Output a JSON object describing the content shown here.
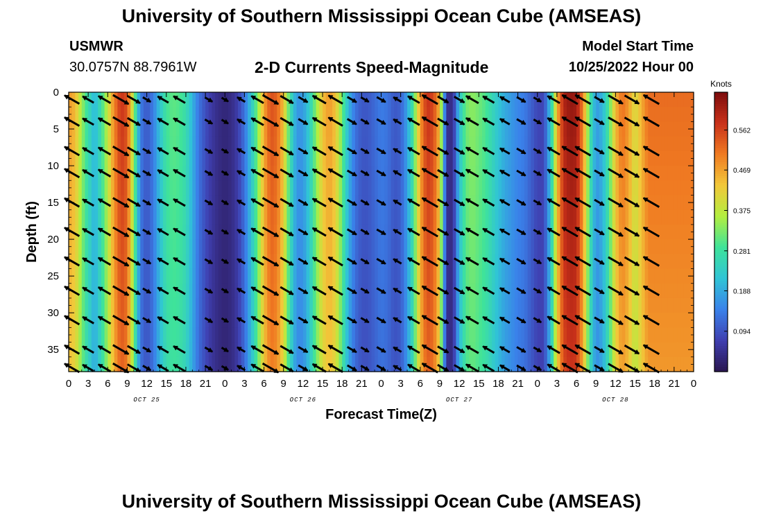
{
  "header": {
    "title": "University of Southern Mississippi Ocean Cube (AMSEAS)",
    "station": "USMWR",
    "coordinates": "30.0757N  88.7961W",
    "subtitle": "2-D Currents Speed-Magnitude",
    "model_start_label": "Model Start Time",
    "model_start_value": "10/25/2022 Hour 00",
    "footer_title": "University of Southern Mississippi Ocean Cube (AMSEAS)"
  },
  "chart_data": {
    "type": "heatmap",
    "title": "2-D Currents Speed-Magnitude",
    "xlabel": "Forecast Time(Z)",
    "ylabel": "Depth (ft)",
    "x_ticks": [
      "0",
      "3",
      "6",
      "9",
      "12",
      "15",
      "18",
      "21",
      "0",
      "3",
      "6",
      "9",
      "12",
      "15",
      "18",
      "21",
      "0",
      "3",
      "6",
      "9",
      "12",
      "15",
      "18",
      "21",
      "0",
      "3",
      "6",
      "9",
      "12",
      "15",
      "18",
      "21",
      "0"
    ],
    "date_labels": [
      {
        "label": "OCT 25",
        "hour": 12
      },
      {
        "label": "OCT 26",
        "hour": 36
      },
      {
        "label": "OCT 27",
        "hour": 60
      },
      {
        "label": "OCT 28",
        "hour": 84
      }
    ],
    "xlim_hours": [
      0,
      96
    ],
    "y_ticks": [
      0,
      5,
      10,
      15,
      20,
      25,
      30,
      35
    ],
    "ylim_ft": [
      0,
      38
    ],
    "colorbar": {
      "label": "Knots",
      "ticks": [
        0.094,
        0.188,
        0.281,
        0.375,
        0.469,
        0.562
      ],
      "range": [
        0.0,
        0.65
      ],
      "colors": [
        "#2a1650",
        "#3f3fb0",
        "#3a82ea",
        "#30c4d6",
        "#3fe39a",
        "#b3ee40",
        "#f2c83a",
        "#f07b22",
        "#c9311a",
        "#7c0c0c"
      ]
    },
    "speed_profile_by_hour": [
      [
        0,
        0.48
      ],
      [
        1,
        0.45
      ],
      [
        2,
        0.35
      ],
      [
        3,
        0.27
      ],
      [
        4,
        0.2
      ],
      [
        5,
        0.28
      ],
      [
        6,
        0.38
      ],
      [
        7,
        0.5
      ],
      [
        8,
        0.58
      ],
      [
        9,
        0.55
      ],
      [
        10,
        0.35
      ],
      [
        11,
        0.14
      ],
      [
        12,
        0.1
      ],
      [
        13,
        0.14
      ],
      [
        14,
        0.22
      ],
      [
        15,
        0.29
      ],
      [
        16,
        0.31
      ],
      [
        17,
        0.3
      ],
      [
        18,
        0.27
      ],
      [
        19,
        0.2
      ],
      [
        20,
        0.13
      ],
      [
        21,
        0.09
      ],
      [
        22,
        0.06
      ],
      [
        23,
        0.04
      ],
      [
        24,
        0.03
      ],
      [
        25,
        0.04
      ],
      [
        26,
        0.07
      ],
      [
        27,
        0.13
      ],
      [
        28,
        0.22
      ],
      [
        29,
        0.33
      ],
      [
        30,
        0.47
      ],
      [
        31,
        0.55
      ],
      [
        32,
        0.53
      ],
      [
        33,
        0.44
      ],
      [
        34,
        0.28
      ],
      [
        35,
        0.17
      ],
      [
        36,
        0.17
      ],
      [
        37,
        0.24
      ],
      [
        38,
        0.34
      ],
      [
        39,
        0.44
      ],
      [
        40,
        0.48
      ],
      [
        41,
        0.44
      ],
      [
        42,
        0.32
      ],
      [
        43,
        0.2
      ],
      [
        44,
        0.13
      ],
      [
        45,
        0.1
      ],
      [
        46,
        0.1
      ],
      [
        47,
        0.12
      ],
      [
        48,
        0.14
      ],
      [
        49,
        0.13
      ],
      [
        50,
        0.1
      ],
      [
        51,
        0.11
      ],
      [
        52,
        0.18
      ],
      [
        53,
        0.3
      ],
      [
        54,
        0.48
      ],
      [
        55,
        0.58
      ],
      [
        56,
        0.56
      ],
      [
        57,
        0.45
      ],
      [
        58,
        0.05
      ],
      [
        59,
        0.04
      ],
      [
        60,
        0.22
      ],
      [
        61,
        0.32
      ],
      [
        62,
        0.34
      ],
      [
        63,
        0.32
      ],
      [
        64,
        0.3
      ],
      [
        65,
        0.26
      ],
      [
        66,
        0.22
      ],
      [
        67,
        0.19
      ],
      [
        68,
        0.17
      ],
      [
        69,
        0.15
      ],
      [
        70,
        0.14
      ],
      [
        71,
        0.11
      ],
      [
        72,
        0.08
      ],
      [
        73,
        0.08
      ],
      [
        74,
        0.22
      ],
      [
        75,
        0.45
      ],
      [
        76,
        0.6
      ],
      [
        77,
        0.63
      ],
      [
        78,
        0.62
      ],
      [
        79,
        0.5
      ],
      [
        80,
        0.3
      ],
      [
        81,
        0.17
      ],
      [
        82,
        0.2
      ],
      [
        83,
        0.3
      ],
      [
        84,
        0.45
      ],
      [
        85,
        0.52
      ],
      [
        86,
        0.48
      ],
      [
        87,
        0.4
      ],
      [
        88,
        0.46
      ],
      [
        89,
        0.52
      ]
    ],
    "vectors": {
      "columns_hours": [
        0.5,
        3,
        5.5,
        8,
        10,
        12,
        14.5,
        17,
        21.5,
        24,
        26.5,
        29,
        31,
        33.5,
        36,
        38.5,
        41,
        43.5,
        45.5,
        48,
        50.5,
        53,
        55.5,
        57.5,
        60,
        62,
        64.5,
        67,
        69.5,
        72,
        74.5,
        77,
        79,
        81.5,
        84,
        86.5,
        89.5
      ],
      "rows_depth_ft": [
        1,
        4,
        8,
        11,
        15,
        19,
        23,
        27,
        31,
        35,
        37.5
      ],
      "dominant_direction": "northwest / southeast alternating with tidal phase"
    }
  }
}
